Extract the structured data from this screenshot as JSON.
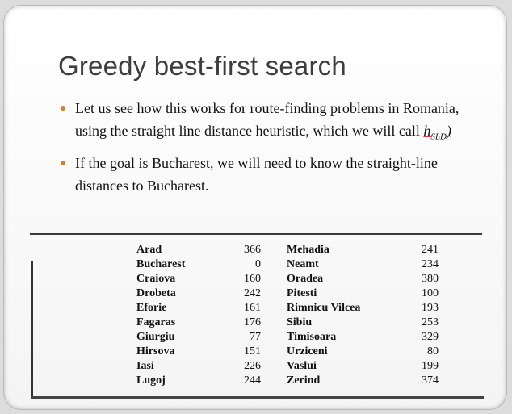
{
  "slide": {
    "title": "Greedy best-first search",
    "bullet1": {
      "text": "Let us see how this works for route-finding problems in Romania, using the straight line distance heuristic, which we will call ",
      "heuristic_symbol": "h",
      "heuristic_subscript": "SLD",
      "heuristic_suffix": ")"
    },
    "bullet2": "If the goal is Bucharest, we will need to know the straight-line distances to Bucharest."
  },
  "distances": {
    "left": [
      {
        "city": "Arad",
        "value": "366"
      },
      {
        "city": "Bucharest",
        "value": "0"
      },
      {
        "city": "Craiova",
        "value": "160"
      },
      {
        "city": "Drobeta",
        "value": "242"
      },
      {
        "city": "Eforie",
        "value": "161"
      },
      {
        "city": "Fagaras",
        "value": "176"
      },
      {
        "city": "Giurgiu",
        "value": "77"
      },
      {
        "city": "Hirsova",
        "value": "151"
      },
      {
        "city": "Iasi",
        "value": "226"
      },
      {
        "city": "Lugoj",
        "value": "244"
      }
    ],
    "right": [
      {
        "city": "Mehadia",
        "value": "241"
      },
      {
        "city": "Neamt",
        "value": "234"
      },
      {
        "city": "Oradea",
        "value": "380"
      },
      {
        "city": "Pitesti",
        "value": "100"
      },
      {
        "city": "Rimnicu Vilcea",
        "value": "193"
      },
      {
        "city": "Sibiu",
        "value": "253"
      },
      {
        "city": "Timisoara",
        "value": "329"
      },
      {
        "city": "Urziceni",
        "value": "80"
      },
      {
        "city": "Vaslui",
        "value": "199"
      },
      {
        "city": "Zerind",
        "value": "374"
      }
    ]
  },
  "colors": {
    "bullet": "#e07a20",
    "title": "#3d3d3d"
  }
}
